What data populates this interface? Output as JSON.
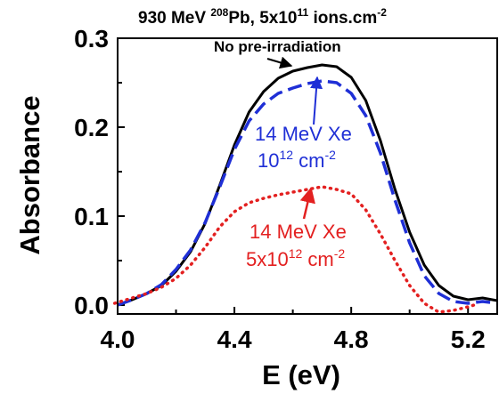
{
  "chart_data": {
    "type": "line",
    "title": {
      "energy": "930 MeV",
      "mass_number": "208",
      "element": "Pb,",
      "fluence_base": "5x10",
      "fluence_exp": "11",
      "unit_base": "ions.cm",
      "unit_exp": "-2"
    },
    "xlabel": "E (eV)",
    "ylabel": "Absorbance",
    "xlim": [
      4.0,
      5.3
    ],
    "ylim": [
      -0.01,
      0.3
    ],
    "x_ticks": [
      {
        "value": 4.0,
        "label": "4.0"
      },
      {
        "value": 4.4,
        "label": "4.4"
      },
      {
        "value": 4.8,
        "label": "4.8"
      },
      {
        "value": 5.2,
        "label": "5.2"
      }
    ],
    "y_ticks": [
      {
        "value": 0.0,
        "label": "0.0"
      },
      {
        "value": 0.1,
        "label": "0.1"
      },
      {
        "value": 0.2,
        "label": "0.2"
      },
      {
        "value": 0.3,
        "label": "0.3"
      }
    ],
    "grid": false,
    "series": [
      {
        "key": "none",
        "color": "#000000",
        "style": "solid",
        "points": [
          [
            4.0,
            0.0
          ],
          [
            4.05,
            0.006
          ],
          [
            4.1,
            0.013
          ],
          [
            4.15,
            0.022
          ],
          [
            4.2,
            0.038
          ],
          [
            4.25,
            0.06
          ],
          [
            4.3,
            0.092
          ],
          [
            4.35,
            0.135
          ],
          [
            4.4,
            0.18
          ],
          [
            4.45,
            0.217
          ],
          [
            4.5,
            0.24
          ],
          [
            4.55,
            0.255
          ],
          [
            4.6,
            0.263
          ],
          [
            4.65,
            0.267
          ],
          [
            4.7,
            0.27
          ],
          [
            4.75,
            0.268
          ],
          [
            4.8,
            0.256
          ],
          [
            4.85,
            0.23
          ],
          [
            4.9,
            0.185
          ],
          [
            4.95,
            0.13
          ],
          [
            5.0,
            0.082
          ],
          [
            5.05,
            0.045
          ],
          [
            5.1,
            0.022
          ],
          [
            5.15,
            0.01
          ],
          [
            5.2,
            0.006
          ],
          [
            5.25,
            0.008
          ],
          [
            5.3,
            0.005
          ]
        ]
      },
      {
        "key": "xe1e12",
        "color": "#1f2fd6",
        "style": "dashed",
        "points": [
          [
            4.0,
            0.0
          ],
          [
            4.05,
            0.006
          ],
          [
            4.1,
            0.013
          ],
          [
            4.15,
            0.023
          ],
          [
            4.2,
            0.04
          ],
          [
            4.25,
            0.062
          ],
          [
            4.3,
            0.093
          ],
          [
            4.35,
            0.133
          ],
          [
            4.4,
            0.175
          ],
          [
            4.45,
            0.207
          ],
          [
            4.5,
            0.226
          ],
          [
            4.55,
            0.238
          ],
          [
            4.6,
            0.244
          ],
          [
            4.65,
            0.249
          ],
          [
            4.7,
            0.252
          ],
          [
            4.75,
            0.25
          ],
          [
            4.8,
            0.238
          ],
          [
            4.85,
            0.213
          ],
          [
            4.9,
            0.171
          ],
          [
            4.95,
            0.118
          ],
          [
            5.0,
            0.07
          ],
          [
            5.05,
            0.033
          ],
          [
            5.1,
            0.013
          ],
          [
            5.15,
            0.004
          ],
          [
            5.2,
            0.002
          ],
          [
            5.25,
            0.004
          ],
          [
            5.3,
            0.002
          ]
        ]
      },
      {
        "key": "xe5e12",
        "color": "#e32020",
        "style": "dotted",
        "points": [
          [
            3.99,
            0.002
          ],
          [
            4.05,
            0.008
          ],
          [
            4.1,
            0.013
          ],
          [
            4.15,
            0.02
          ],
          [
            4.2,
            0.03
          ],
          [
            4.25,
            0.045
          ],
          [
            4.3,
            0.065
          ],
          [
            4.35,
            0.088
          ],
          [
            4.4,
            0.105
          ],
          [
            4.45,
            0.115
          ],
          [
            4.5,
            0.12
          ],
          [
            4.55,
            0.124
          ],
          [
            4.6,
            0.127
          ],
          [
            4.65,
            0.13
          ],
          [
            4.7,
            0.133
          ],
          [
            4.75,
            0.13
          ],
          [
            4.8,
            0.125
          ],
          [
            4.85,
            0.107
          ],
          [
            4.9,
            0.08
          ],
          [
            4.95,
            0.05
          ],
          [
            5.0,
            0.022
          ],
          [
            5.05,
            0.002
          ],
          [
            5.1,
            -0.008
          ],
          [
            5.15,
            -0.006
          ],
          [
            5.2,
            -0.002
          ],
          [
            5.22,
            0.0
          ]
        ]
      }
    ],
    "annotations": [
      {
        "key": "none",
        "color": "#000000",
        "lines": [
          {
            "base": "No pre-irradiation"
          }
        ]
      },
      {
        "key": "xe1e12",
        "color": "#1f2fd6",
        "lines": [
          {
            "base": "14 MeV Xe"
          },
          {
            "base": "10",
            "sup": "12",
            "tail": " cm",
            "sup2": "-2"
          }
        ]
      },
      {
        "key": "xe5e12",
        "color": "#e32020",
        "lines": [
          {
            "base": "14 MeV Xe"
          },
          {
            "base": "5x10",
            "sup": "12",
            "tail": " cm",
            "sup2": "-2"
          }
        ]
      }
    ]
  }
}
